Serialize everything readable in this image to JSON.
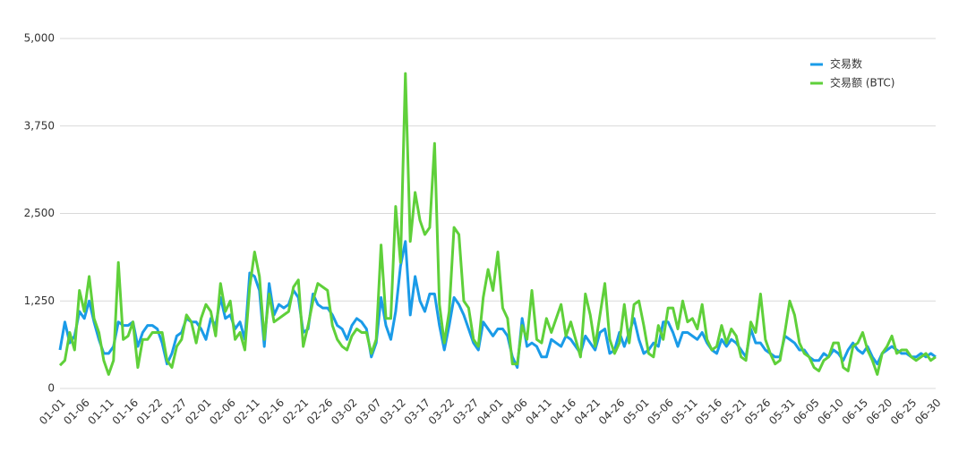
{
  "chart_data": {
    "type": "line",
    "categories": [
      "01-01",
      null,
      null,
      null,
      null,
      "01-06",
      null,
      null,
      null,
      null,
      "01-11",
      null,
      null,
      null,
      null,
      "01-16",
      null,
      null,
      null,
      null,
      "01-22",
      null,
      null,
      null,
      null,
      "01-27",
      null,
      null,
      null,
      null,
      "02-01",
      null,
      null,
      null,
      null,
      "02-06",
      null,
      null,
      null,
      null,
      "02-11",
      null,
      null,
      null,
      null,
      "02-16",
      null,
      null,
      null,
      null,
      "02-21",
      null,
      null,
      null,
      null,
      "02-26",
      null,
      null,
      null,
      null,
      "03-02",
      null,
      null,
      null,
      null,
      "03-07",
      null,
      null,
      null,
      null,
      "03-12",
      null,
      null,
      null,
      null,
      "03-17",
      null,
      null,
      null,
      null,
      "03-22",
      null,
      null,
      null,
      null,
      "03-27",
      null,
      null,
      null,
      null,
      "04-01",
      null,
      null,
      null,
      null,
      "04-06",
      null,
      null,
      null,
      null,
      "04-11",
      null,
      null,
      null,
      null,
      "04-16",
      null,
      null,
      null,
      null,
      "04-21",
      null,
      null,
      null,
      null,
      "04-26",
      null,
      null,
      null,
      null,
      "05-01",
      null,
      null,
      null,
      null,
      "05-06",
      null,
      null,
      null,
      null,
      "05-11",
      null,
      null,
      null,
      null,
      "05-16",
      null,
      null,
      null,
      null,
      "05-21",
      null,
      null,
      null,
      null,
      "05-26",
      null,
      null,
      null,
      null,
      "05-31",
      null,
      null,
      null,
      null,
      "06-05",
      null,
      null,
      null,
      null,
      "06-10",
      null,
      null,
      null,
      null,
      "06-15",
      null,
      null,
      null,
      null,
      "06-20",
      null,
      null,
      null,
      null,
      "06-25",
      null,
      null,
      null,
      null,
      "06-30"
    ],
    "series": [
      {
        "name": "交易数",
        "color": "#1a9be8",
        "values": [
          550,
          950,
          650,
          750,
          1100,
          1000,
          1250,
          950,
          700,
          500,
          500,
          600,
          950,
          900,
          900,
          950,
          600,
          800,
          900,
          900,
          850,
          650,
          350,
          500,
          750,
          800,
          1000,
          950,
          950,
          850,
          700,
          1000,
          900,
          1300,
          1000,
          1050,
          850,
          950,
          700,
          1650,
          1600,
          1400,
          600,
          1500,
          1050,
          1200,
          1150,
          1200,
          1400,
          1300,
          800,
          850,
          1350,
          1200,
          1150,
          1150,
          1050,
          900,
          850,
          700,
          900,
          1000,
          950,
          850,
          450,
          650,
          1300,
          900,
          700,
          1100,
          1750,
          2100,
          1050,
          1600,
          1250,
          1100,
          1350,
          1350,
          900,
          550,
          900,
          1300,
          1200,
          1050,
          850,
          650,
          550,
          950,
          850,
          750,
          850,
          850,
          750,
          450,
          300,
          1000,
          600,
          650,
          600,
          450,
          450,
          700,
          650,
          600,
          750,
          700,
          600,
          500,
          750,
          650,
          550,
          800,
          850,
          500,
          550,
          800,
          600,
          800,
          1000,
          700,
          500,
          550,
          650,
          600,
          950,
          950,
          800,
          600,
          800,
          800,
          750,
          700,
          800,
          650,
          550,
          500,
          700,
          600,
          700,
          650,
          550,
          450,
          850,
          650,
          650,
          550,
          500,
          450,
          450,
          750,
          700,
          650,
          550,
          550,
          450,
          400,
          400,
          500,
          450,
          550,
          500,
          400,
          550,
          650,
          550,
          500,
          600,
          450,
          350,
          500,
          550,
          600,
          550,
          500,
          500,
          450,
          450,
          500,
          450,
          500,
          450
        ]
      },
      {
        "name": "交易额 (BTC)",
        "color": "#5fd03a",
        "values": [
          330,
          400,
          800,
          550,
          1400,
          1100,
          1600,
          1000,
          800,
          400,
          200,
          400,
          1800,
          700,
          750,
          950,
          300,
          700,
          700,
          800,
          800,
          800,
          400,
          300,
          600,
          700,
          1050,
          950,
          650,
          1000,
          1200,
          1100,
          750,
          1500,
          1100,
          1250,
          700,
          800,
          550,
          1450,
          1950,
          1600,
          700,
          1350,
          950,
          1000,
          1050,
          1100,
          1450,
          1550,
          600,
          900,
          1250,
          1500,
          1450,
          1400,
          900,
          700,
          600,
          550,
          750,
          850,
          800,
          800,
          500,
          700,
          2050,
          1000,
          1000,
          2600,
          1800,
          4500,
          2100,
          2800,
          2400,
          2200,
          2300,
          3500,
          1200,
          650,
          1100,
          2300,
          2200,
          1250,
          1150,
          700,
          600,
          1300,
          1700,
          1400,
          1950,
          1150,
          1000,
          350,
          350,
          900,
          700,
          1400,
          700,
          650,
          1000,
          800,
          1000,
          1200,
          750,
          950,
          700,
          450,
          1350,
          1050,
          600,
          1050,
          1500,
          700,
          500,
          650,
          1200,
          650,
          1200,
          1250,
          900,
          500,
          450,
          900,
          700,
          1150,
          1150,
          850,
          1250,
          950,
          1000,
          850,
          1200,
          700,
          550,
          600,
          900,
          650,
          850,
          750,
          450,
          400,
          950,
          800,
          1350,
          700,
          500,
          350,
          400,
          800,
          1250,
          1050,
          650,
          500,
          450,
          300,
          250,
          400,
          450,
          650,
          650,
          300,
          250,
          600,
          650,
          800,
          550,
          400,
          200,
          500,
          600,
          750,
          500,
          550,
          550,
          450,
          400,
          450,
          500,
          400,
          450
        ]
      }
    ],
    "ylim": [
      0,
      5000
    ],
    "yticks": [
      0,
      {
        "value": 1250,
        "label": "1,250"
      },
      {
        "value": 2500,
        "label": "2,500"
      },
      {
        "value": 3750,
        "label": "3,750"
      },
      {
        "value": 5000,
        "label": "5,000"
      }
    ],
    "grid": true,
    "legend": "top-right"
  }
}
